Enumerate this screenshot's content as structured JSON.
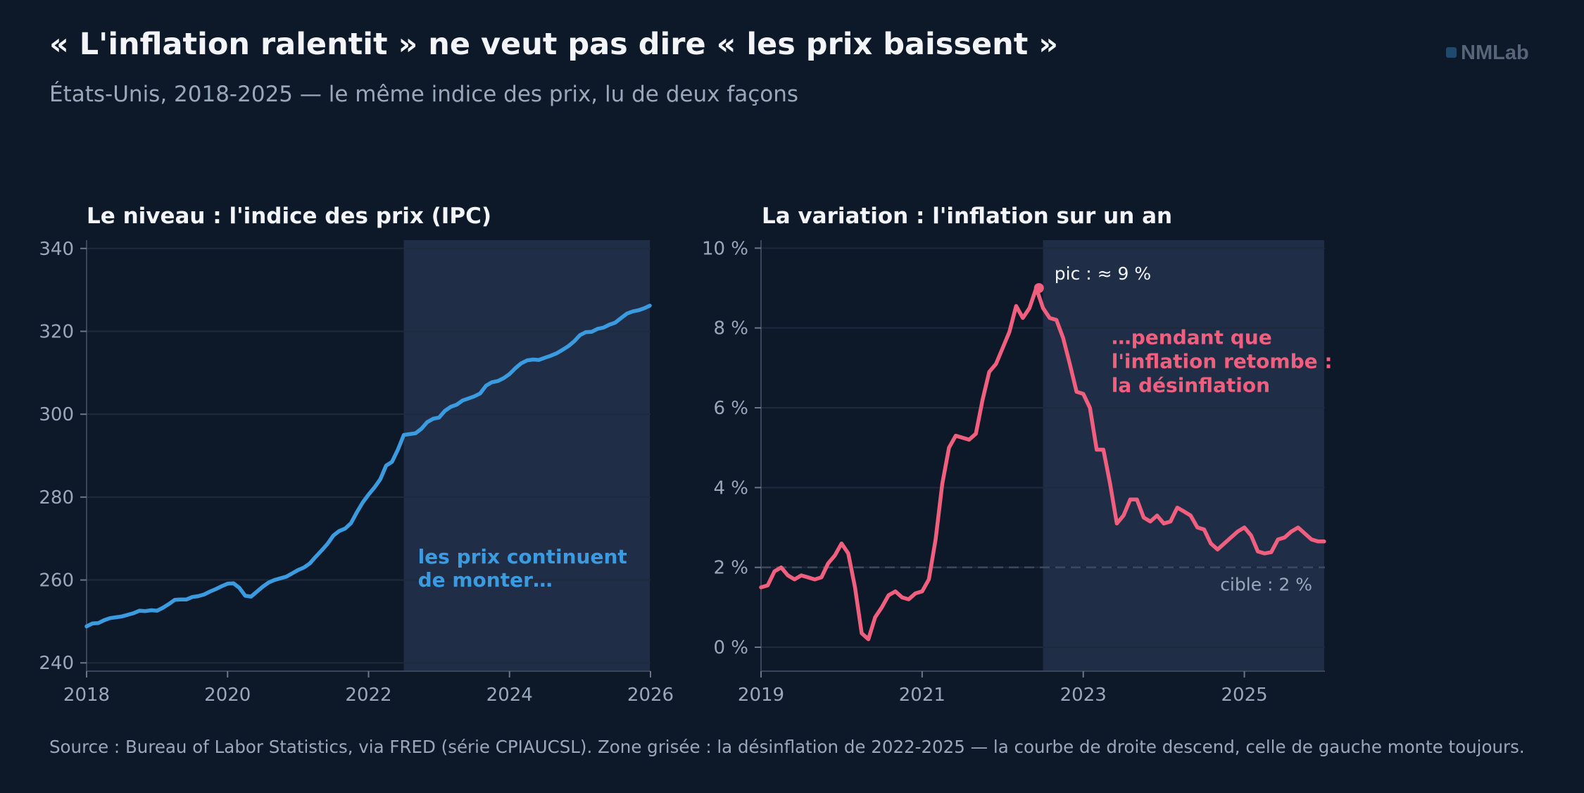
{
  "header": {
    "title": "« L'inflation ralentit » ne veut pas dire « les prix baissent »",
    "subtitle": "États-Unis, 2018-2025 — le même indice des prix, lu de deux façons",
    "brand": "NMLab"
  },
  "footer": {
    "source": "Source : Bureau of Labor Statistics, via FRED (série CPIAUCSL). Zone grisée : la désinflation de 2022-2025 — la courbe de droite descend, celle de gauche monte toujours."
  },
  "colors": {
    "background": "#0d1828",
    "shade": "#1f2d47",
    "cpi_line": "#3b9be0",
    "inflation_line": "#f0607e",
    "grid": "#1e2a3c",
    "axis": "#3a4659"
  },
  "chart_data": [
    {
      "type": "line",
      "title": "Le niveau : l'indice des prix (IPC)",
      "xlabel": "",
      "ylabel": "",
      "xlim": [
        2018,
        2026
      ],
      "ylim": [
        238,
        342
      ],
      "xticks": [
        2018,
        2020,
        2022,
        2024,
        2026
      ],
      "yticks": [
        240,
        260,
        280,
        300,
        320,
        340
      ],
      "grid": true,
      "shaded_region": {
        "x_start": 2022.5,
        "x_end": 2025.99
      },
      "annotations": [
        {
          "text": "les prix continuent",
          "x": 2022.7,
          "y": 264
        },
        {
          "text": "de monter…",
          "x": 2022.7,
          "y": 258.4
        }
      ],
      "series": [
        {
          "x": [
            2018.0,
            2018.083,
            2018.167,
            2018.25,
            2018.333,
            2018.417,
            2018.5,
            2018.583,
            2018.667,
            2018.75,
            2018.833,
            2018.917,
            2019.0,
            2019.083,
            2019.167,
            2019.25,
            2019.333,
            2019.417,
            2019.5,
            2019.583,
            2019.667,
            2019.75,
            2019.833,
            2019.917,
            2020.0,
            2020.083,
            2020.167,
            2020.25,
            2020.333,
            2020.417,
            2020.5,
            2020.583,
            2020.667,
            2020.75,
            2020.833,
            2020.917,
            2021.0,
            2021.083,
            2021.167,
            2021.25,
            2021.333,
            2021.417,
            2021.5,
            2021.583,
            2021.667,
            2021.75,
            2021.833,
            2021.917,
            2022.0,
            2022.083,
            2022.167,
            2022.25,
            2022.333,
            2022.417,
            2022.5,
            2022.583,
            2022.667,
            2022.75,
            2022.833,
            2022.917,
            2023.0,
            2023.083,
            2023.167,
            2023.25,
            2023.333,
            2023.417,
            2023.5,
            2023.583,
            2023.667,
            2023.75,
            2023.833,
            2023.917,
            2024.0,
            2024.083,
            2024.167,
            2024.25,
            2024.333,
            2024.417,
            2024.5,
            2024.583,
            2024.667,
            2024.75,
            2024.833,
            2024.917,
            2025.0,
            2025.083,
            2025.167,
            2025.25,
            2025.333,
            2025.417,
            2025.5,
            2025.583,
            2025.667,
            2025.75,
            2025.833,
            2025.917,
            2025.99
          ],
          "values": [
            248.8,
            249.5,
            249.6,
            250.3,
            250.8,
            251.0,
            251.2,
            251.6,
            252.0,
            252.6,
            252.5,
            252.7,
            252.6,
            253.3,
            254.2,
            255.2,
            255.3,
            255.3,
            255.9,
            256.1,
            256.5,
            257.2,
            257.8,
            258.5,
            259.1,
            259.2,
            258.1,
            256.2,
            256.0,
            257.2,
            258.4,
            259.4,
            260.0,
            260.4,
            260.8,
            261.6,
            262.4,
            263.0,
            264.0,
            265.6,
            267.1,
            268.7,
            270.7,
            271.8,
            272.4,
            273.7,
            276.3,
            278.7,
            280.6,
            282.3,
            284.3,
            287.6,
            288.5,
            291.5,
            295.0,
            295.2,
            295.4,
            296.5,
            298.1,
            298.9,
            299.2,
            300.8,
            301.8,
            302.3,
            303.3,
            303.8,
            304.3,
            305.0,
            306.9,
            307.7,
            308.0,
            308.7,
            309.7,
            311.1,
            312.3,
            313.0,
            313.2,
            313.1,
            313.6,
            314.1,
            314.7,
            315.5,
            316.4,
            317.6,
            319.1,
            319.8,
            319.9,
            320.6,
            320.9,
            321.6,
            322.1,
            323.2,
            324.3,
            324.8,
            325.1,
            325.6,
            326.2
          ]
        }
      ]
    },
    {
      "type": "line",
      "title": "La variation : l'inflation sur un an",
      "xlabel": "",
      "ylabel": "",
      "xlim": [
        2019,
        2026
      ],
      "ylim": [
        -0.6,
        10.2
      ],
      "xticks": [
        2019,
        2021,
        2023,
        2025
      ],
      "ytick_labels": [
        "0 %",
        "2 %",
        "4 %",
        "6 %",
        "8 %",
        "10 %"
      ],
      "yticks": [
        0,
        2,
        4,
        6,
        8,
        10
      ],
      "grid": true,
      "shaded_region": {
        "x_start": 2022.5,
        "x_end": 2025.99
      },
      "reference_line": {
        "y": 2,
        "label": "cible : 2 %"
      },
      "peak": {
        "x": 2022.45,
        "y": 9.0,
        "label": "pic : ≈ 9 %"
      },
      "annotations": [
        {
          "text": "…pendant que",
          "x": 2023.35,
          "y": 7.6
        },
        {
          "text": "l'inflation retombe :",
          "x": 2023.35,
          "y": 7.0
        },
        {
          "text": "la désinflation",
          "x": 2023.35,
          "y": 6.4
        }
      ],
      "series": [
        {
          "x": [
            2019.0,
            2019.083,
            2019.167,
            2019.25,
            2019.333,
            2019.417,
            2019.5,
            2019.583,
            2019.667,
            2019.75,
            2019.833,
            2019.917,
            2020.0,
            2020.083,
            2020.167,
            2020.25,
            2020.333,
            2020.417,
            2020.5,
            2020.583,
            2020.667,
            2020.75,
            2020.833,
            2020.917,
            2021.0,
            2021.083,
            2021.167,
            2021.25,
            2021.333,
            2021.417,
            2021.5,
            2021.583,
            2021.667,
            2021.75,
            2021.833,
            2021.917,
            2022.0,
            2022.083,
            2022.167,
            2022.25,
            2022.333,
            2022.417,
            2022.5,
            2022.583,
            2022.667,
            2022.75,
            2022.833,
            2022.917,
            2023.0,
            2023.083,
            2023.167,
            2023.25,
            2023.333,
            2023.417,
            2023.5,
            2023.583,
            2023.667,
            2023.75,
            2023.833,
            2023.917,
            2024.0,
            2024.083,
            2024.167,
            2024.25,
            2024.333,
            2024.417,
            2024.5,
            2024.583,
            2024.667,
            2024.75,
            2024.833,
            2024.917,
            2025.0,
            2025.083,
            2025.167,
            2025.25,
            2025.333,
            2025.417,
            2025.5,
            2025.583,
            2025.667,
            2025.75,
            2025.833,
            2025.917,
            2025.99
          ],
          "values": [
            1.5,
            1.55,
            1.9,
            2.0,
            1.8,
            1.7,
            1.8,
            1.75,
            1.7,
            1.75,
            2.1,
            2.3,
            2.6,
            2.35,
            1.5,
            0.35,
            0.2,
            0.75,
            1.0,
            1.3,
            1.4,
            1.25,
            1.2,
            1.35,
            1.4,
            1.7,
            2.7,
            4.1,
            5.0,
            5.3,
            5.25,
            5.2,
            5.35,
            6.2,
            6.9,
            7.1,
            7.5,
            7.9,
            8.55,
            8.25,
            8.5,
            9.0,
            8.5,
            8.25,
            8.2,
            7.75,
            7.1,
            6.4,
            6.35,
            6.0,
            4.95,
            4.95,
            4.1,
            3.1,
            3.3,
            3.7,
            3.7,
            3.25,
            3.15,
            3.3,
            3.1,
            3.15,
            3.5,
            3.4,
            3.3,
            3.0,
            2.95,
            2.6,
            2.45,
            2.6,
            2.75,
            2.9,
            3.0,
            2.8,
            2.4,
            2.35,
            2.38,
            2.7,
            2.75,
            2.9,
            3.0,
            2.85,
            2.7,
            2.65,
            2.65
          ]
        }
      ]
    }
  ]
}
